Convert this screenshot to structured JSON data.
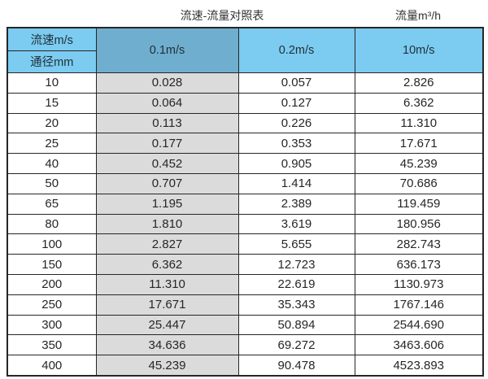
{
  "page": {
    "title": "流速-流量对照表",
    "unit_label": "流量m³/h"
  },
  "colors": {
    "header_light_blue": "#7CCBF0",
    "header_dark_blue": "#6FAECE",
    "highlight_column_gray": "#DBDBDB",
    "border": "#262626",
    "background": "#FFFFFF",
    "text": "#262626"
  },
  "chart_data": {
    "type": "table",
    "title": "流速-流量对照表",
    "unit_label": "流量m³/h",
    "corner": {
      "velocity_label": "流速m/s",
      "diameter_label": "通径mm"
    },
    "velocity_columns": [
      "0.1m/s",
      "0.2m/s",
      "10m/s"
    ],
    "rows": [
      {
        "diameter": "10",
        "values": [
          "0.028",
          "0.057",
          "2.826"
        ]
      },
      {
        "diameter": "15",
        "values": [
          "0.064",
          "0.127",
          "6.362"
        ]
      },
      {
        "diameter": "20",
        "values": [
          "0.113",
          "0.226",
          "11.310"
        ]
      },
      {
        "diameter": "25",
        "values": [
          "0.177",
          "0.353",
          "17.671"
        ]
      },
      {
        "diameter": "40",
        "values": [
          "0.452",
          "0.905",
          "45.239"
        ]
      },
      {
        "diameter": "50",
        "values": [
          "0.707",
          "1.414",
          "70.686"
        ]
      },
      {
        "diameter": "65",
        "values": [
          "1.195",
          "2.389",
          "119.459"
        ]
      },
      {
        "diameter": "80",
        "values": [
          "1.810",
          "3.619",
          "180.956"
        ]
      },
      {
        "diameter": "100",
        "values": [
          "2.827",
          "5.655",
          "282.743"
        ]
      },
      {
        "diameter": "150",
        "values": [
          "6.362",
          "12.723",
          "636.173"
        ]
      },
      {
        "diameter": "200",
        "values": [
          "11.310",
          "22.619",
          "1130.973"
        ]
      },
      {
        "diameter": "250",
        "values": [
          "17.671",
          "35.343",
          "1767.146"
        ]
      },
      {
        "diameter": "300",
        "values": [
          "25.447",
          "50.894",
          "2544.690"
        ]
      },
      {
        "diameter": "350",
        "values": [
          "34.636",
          "69.272",
          "3463.606"
        ]
      },
      {
        "diameter": "400",
        "values": [
          "45.239",
          "90.478",
          "4523.893"
        ]
      }
    ]
  }
}
